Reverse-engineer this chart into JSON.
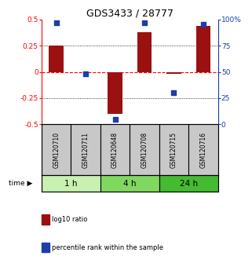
{
  "title": "GDS3433 / 28777",
  "samples": [
    "GSM120710",
    "GSM120711",
    "GSM120648",
    "GSM120708",
    "GSM120715",
    "GSM120716"
  ],
  "log10_ratio": [
    0.25,
    0.0,
    -0.4,
    0.38,
    -0.02,
    0.44
  ],
  "percentile_rank": [
    97,
    48,
    5,
    97,
    30,
    95
  ],
  "bar_color": "#9B1010",
  "dot_color": "#1C3EA6",
  "ylim_left": [
    -0.5,
    0.5
  ],
  "ylim_right": [
    0,
    100
  ],
  "yticks_left": [
    -0.5,
    -0.25,
    0,
    0.25,
    0.5
  ],
  "yticks_right": [
    0,
    25,
    50,
    75,
    100
  ],
  "ytick_labels_right": [
    "0",
    "25",
    "50",
    "75",
    "100%"
  ],
  "dotted_lines": [
    -0.25,
    0.25
  ],
  "time_groups": [
    {
      "label": "1 h",
      "start": 0,
      "end": 1,
      "color": "#C8F0B0"
    },
    {
      "label": "4 h",
      "start": 2,
      "end": 3,
      "color": "#80D860"
    },
    {
      "label": "24 h",
      "start": 4,
      "end": 5,
      "color": "#44BB30"
    }
  ],
  "legend": [
    {
      "label": "log10 ratio",
      "color": "#9B1010"
    },
    {
      "label": "percentile rank within the sample",
      "color": "#1C3EA6"
    }
  ],
  "background_color": "#FFFFFF",
  "sample_box_color": "#C8C8C8",
  "bar_width": 0.5
}
